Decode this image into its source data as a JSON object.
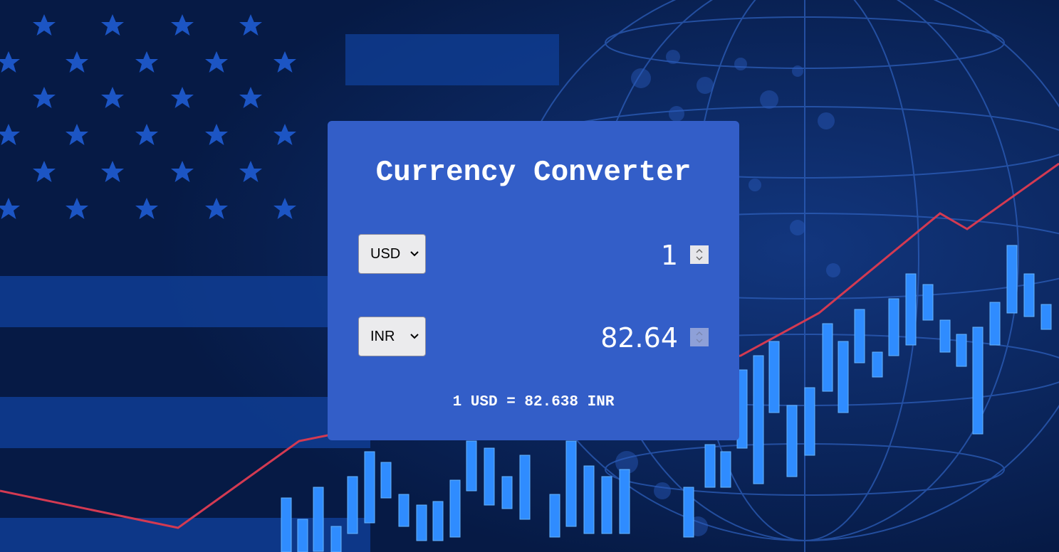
{
  "app": {
    "title": "Currency Converter"
  },
  "from": {
    "currency": "USD",
    "amount": "1"
  },
  "to": {
    "currency": "INR",
    "amount": "82.64"
  },
  "rate_text": "1 USD = 82.638 INR",
  "colors": {
    "background": "#061a45",
    "card": "#335ec8",
    "text": "#ffffff",
    "chart_line": "#d33a52",
    "candles": "#2f8cff"
  }
}
